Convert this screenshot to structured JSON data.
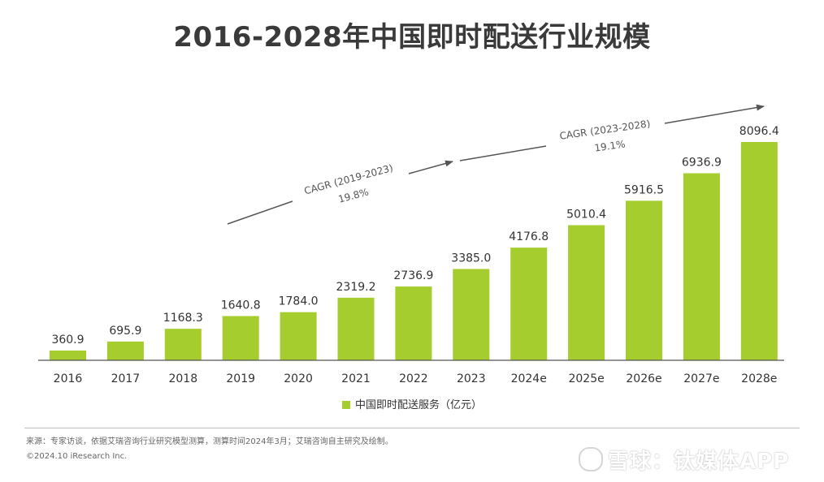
{
  "title": "2016-2028年中国即时配送行业规模",
  "colors": {
    "bar": "#a4cd2d",
    "axis": "#555555",
    "arrow": "#555555"
  },
  "chart_data": {
    "type": "bar",
    "categories": [
      "2016",
      "2017",
      "2018",
      "2019",
      "2020",
      "2021",
      "2022",
      "2023",
      "2024e",
      "2025e",
      "2026e",
      "2027e",
      "2028e"
    ],
    "series": [
      {
        "name": "中国即时配送服务（亿元）",
        "values": [
          360.9,
          695.9,
          1168.3,
          1640.8,
          1784.0,
          2319.2,
          2736.9,
          3385.0,
          4176.8,
          5010.4,
          5916.5,
          6936.9,
          8096.4
        ]
      }
    ],
    "data_labels": [
      "360.9",
      "695.9",
      "1168.3",
      "1640.8",
      "1784.0",
      "2319.2",
      "2736.9",
      "3385.0",
      "4176.8",
      "5010.4",
      "5916.5",
      "6936.9",
      "8096.4"
    ],
    "ylim": [
      0,
      8096.4
    ],
    "grid": false,
    "legend_position": "bottom",
    "annotations": [
      {
        "label": "CAGR (2019-2023)",
        "value": "19.8%",
        "from": "2019",
        "to": "2023"
      },
      {
        "label": "CAGR (2023-2028)",
        "value": "19.1%",
        "from": "2023",
        "to": "2028e"
      }
    ]
  },
  "legend_label": "中国即时配送服务（亿元）",
  "source": "来源：专家访谈，依据艾瑞咨询行业研究模型测算，测算时间2024年3月；艾瑞咨询自主研究及绘制。",
  "copyright": "©2024.10 iResearch Inc.",
  "watermark": "雪球：钛媒体APP"
}
